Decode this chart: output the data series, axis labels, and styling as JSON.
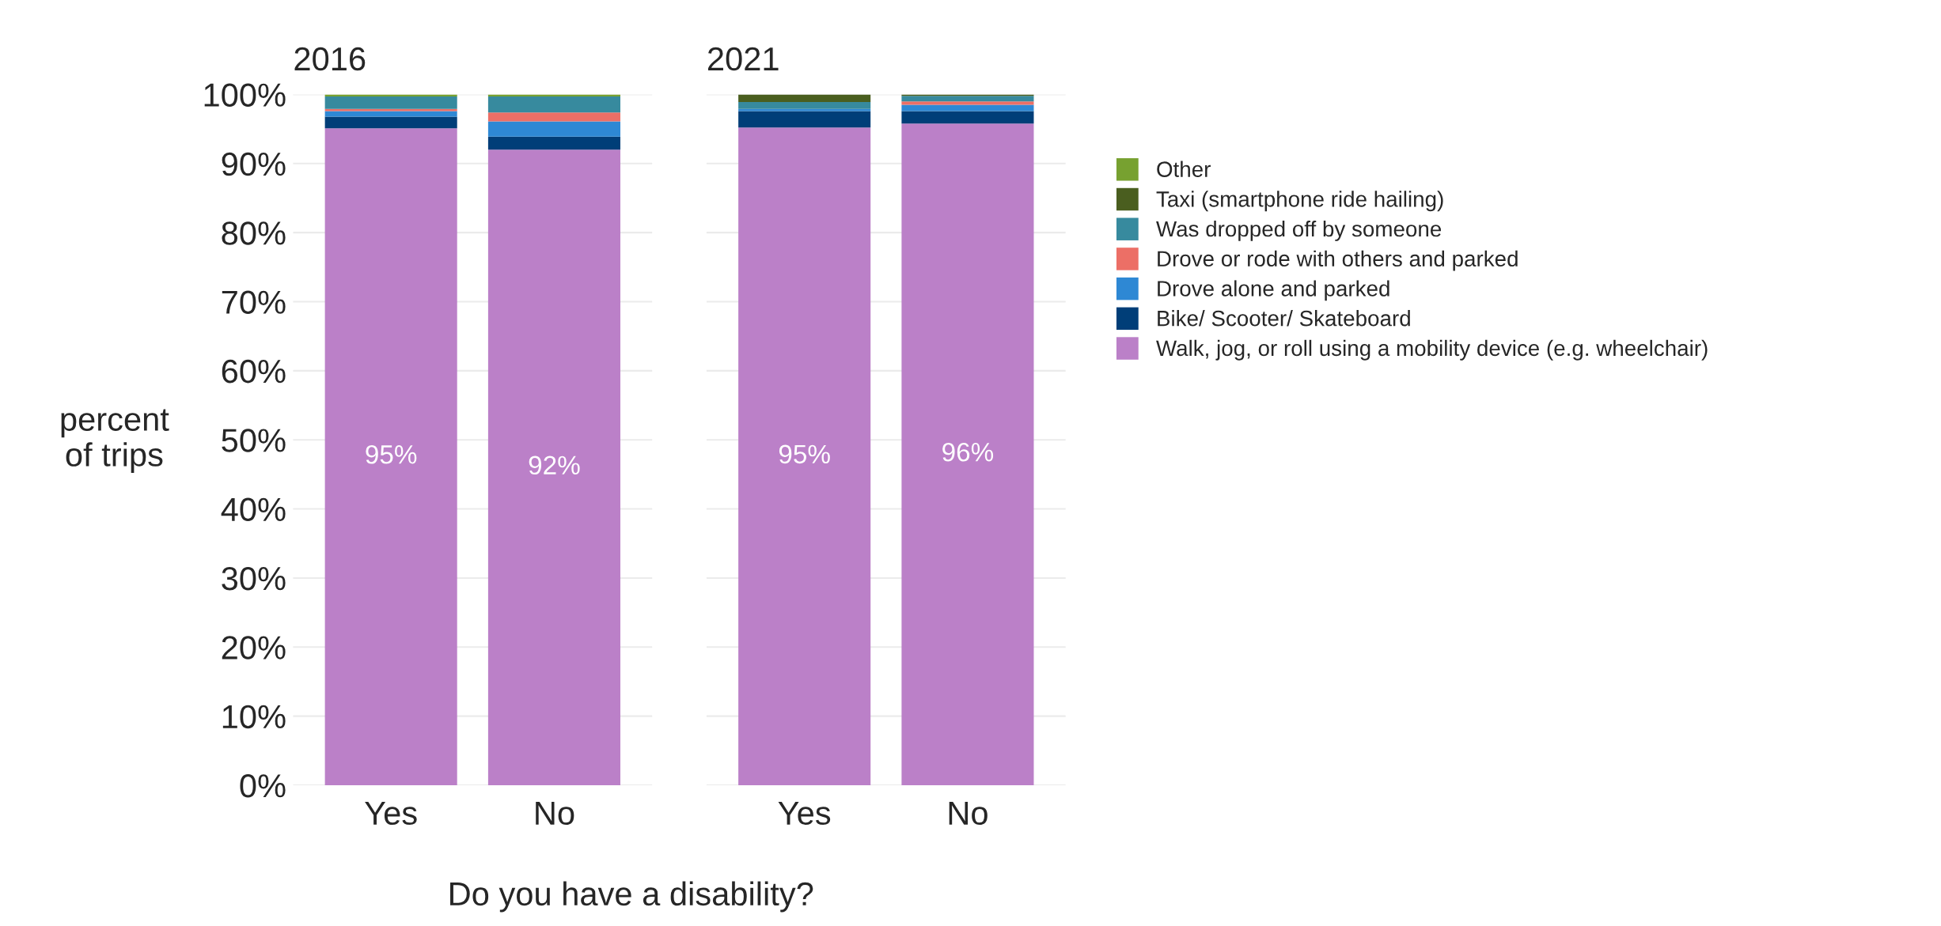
{
  "chart_data": [
    {
      "type": "bar",
      "stacked": true,
      "title": "2016",
      "xlabel": "Do you have a disability?",
      "ylabel": "percent\nof trips",
      "categories": [
        "Yes",
        "No"
      ],
      "ylim": [
        0,
        100
      ],
      "yticks": [
        {
          "value": 0,
          "label": "0%"
        },
        {
          "value": 10,
          "label": "10%"
        },
        {
          "value": 20,
          "label": "20%"
        },
        {
          "value": 30,
          "label": "30%"
        },
        {
          "value": 40,
          "label": "40%"
        },
        {
          "value": 50,
          "label": "50%"
        },
        {
          "value": 60,
          "label": "60%"
        },
        {
          "value": 70,
          "label": "70%"
        },
        {
          "value": 80,
          "label": "80%"
        },
        {
          "value": 90,
          "label": "90%"
        },
        {
          "value": 100,
          "label": "100%"
        }
      ],
      "grid": "y",
      "series": [
        {
          "color": "#bb80c8",
          "values": [
            95.1,
            92.0
          ],
          "value_labels": [
            "95%",
            "92%"
          ]
        },
        {
          "color": "#003e78",
          "values": [
            1.7,
            1.9
          ]
        },
        {
          "color": "#2e88d4",
          "values": [
            0.8,
            2.2
          ]
        },
        {
          "color": "#ec6f66",
          "values": [
            0.3,
            1.3
          ]
        },
        {
          "color": "#378a9e",
          "values": [
            1.8,
            2.3
          ]
        },
        {
          "color": "#77a130",
          "values": [
            0.3,
            0.3
          ]
        }
      ]
    },
    {
      "type": "bar",
      "stacked": true,
      "title": "2021",
      "categories": [
        "Yes",
        "No"
      ],
      "ylim": [
        0,
        100
      ],
      "yticks": [
        {
          "value": 0,
          "label": null
        },
        {
          "value": 10,
          "label": null
        },
        {
          "value": 20,
          "label": null
        },
        {
          "value": 30,
          "label": null
        },
        {
          "value": 40,
          "label": null
        },
        {
          "value": 50,
          "label": null
        },
        {
          "value": 60,
          "label": null
        },
        {
          "value": 70,
          "label": null
        },
        {
          "value": 80,
          "label": null
        },
        {
          "value": 90,
          "label": null
        },
        {
          "value": 100,
          "label": null
        }
      ],
      "grid": "y",
      "legend": "right",
      "tick_labels": "x",
      "series": [
        {
          "name": "Walk, jog, or roll using a mobility device (e.g. wheelchair)",
          "color": "#bb80c8",
          "values": [
            95.2,
            95.8
          ],
          "value_labels": [
            "95%",
            "96%"
          ]
        },
        {
          "name": "Bike/ Scooter/ Skateboard",
          "color": "#003e78",
          "values": [
            2.4,
            1.8
          ]
        },
        {
          "name": "Drove alone and parked",
          "color": "#2e88d4",
          "values": [
            0.3,
            0.9
          ]
        },
        {
          "name": "Drove or rode with others and parked",
          "color": "#ec6f66",
          "values": [
            0,
            0.5
          ]
        },
        {
          "name": "Was dropped off by someone",
          "color": "#378a9e",
          "values": [
            1.0,
            0.8
          ]
        },
        {
          "name": "Taxi (smartphone ride hailing)",
          "color": "#4a5e1f",
          "values": [
            1.1,
            0.2
          ]
        },
        {
          "name": "Other",
          "color": "#77a130",
          "values": [
            0,
            0
          ]
        }
      ]
    }
  ]
}
